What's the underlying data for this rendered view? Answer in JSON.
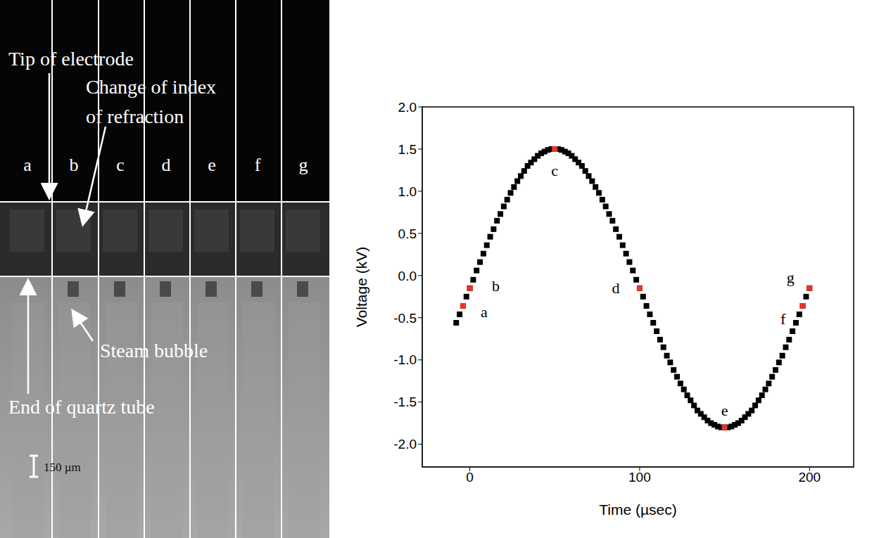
{
  "chart_data": {
    "type": "scatter",
    "xlabel": "Time (µsec)",
    "ylabel": "Voltage (kV)",
    "x": [
      -8,
      -6,
      -4,
      -2,
      0,
      2,
      4,
      6,
      8,
      10,
      12,
      14,
      16,
      18,
      20,
      22,
      24,
      26,
      28,
      30,
      32,
      34,
      36,
      38,
      40,
      42,
      44,
      46,
      48,
      50,
      52,
      54,
      56,
      58,
      60,
      62,
      64,
      66,
      68,
      70,
      72,
      74,
      76,
      78,
      80,
      82,
      84,
      86,
      88,
      90,
      92,
      94,
      96,
      98,
      100,
      102,
      104,
      106,
      108,
      110,
      112,
      114,
      116,
      118,
      120,
      122,
      124,
      126,
      128,
      130,
      132,
      134,
      136,
      138,
      140,
      142,
      144,
      146,
      148,
      150,
      152,
      154,
      156,
      158,
      160,
      162,
      164,
      166,
      168,
      170,
      172,
      174,
      176,
      178,
      180,
      182,
      184,
      186,
      188,
      190,
      192,
      194,
      196,
      198,
      200
    ],
    "values": [
      -0.56,
      -0.46,
      -0.36,
      -0.25,
      -0.15,
      -0.05,
      0.06,
      0.16,
      0.26,
      0.36,
      0.46,
      0.55,
      0.65,
      0.73,
      0.82,
      0.9,
      0.98,
      1.05,
      1.12,
      1.18,
      1.24,
      1.3,
      1.34,
      1.38,
      1.42,
      1.45,
      1.47,
      1.49,
      1.5,
      1.5,
      1.5,
      1.49,
      1.47,
      1.45,
      1.42,
      1.38,
      1.34,
      1.3,
      1.24,
      1.18,
      1.12,
      1.05,
      0.98,
      0.9,
      0.82,
      0.73,
      0.65,
      0.55,
      0.46,
      0.36,
      0.26,
      0.16,
      0.06,
      -0.05,
      -0.15,
      -0.25,
      -0.36,
      -0.46,
      -0.56,
      -0.66,
      -0.76,
      -0.85,
      -0.95,
      -1.03,
      -1.12,
      -1.2,
      -1.28,
      -1.35,
      -1.42,
      -1.48,
      -1.54,
      -1.6,
      -1.64,
      -1.68,
      -1.72,
      -1.75,
      -1.77,
      -1.79,
      -1.8,
      -1.8,
      -1.8,
      -1.79,
      -1.77,
      -1.75,
      -1.72,
      -1.68,
      -1.64,
      -1.6,
      -1.54,
      -1.48,
      -1.42,
      -1.35,
      -1.28,
      -1.2,
      -1.12,
      -1.03,
      -0.95,
      -0.85,
      -0.76,
      -0.66,
      -0.56,
      -0.46,
      -0.36,
      -0.25,
      -0.15
    ],
    "color": "#000000",
    "marker": "square",
    "xlim": [
      -28,
      226
    ],
    "xticks": [
      0,
      100,
      200
    ],
    "ylim": [
      -2.27,
      2.0
    ],
    "yticks": [
      {
        "value": -2,
        "label": "-2.0"
      },
      -1.5,
      {
        "value": -1,
        "label": "-1.0"
      },
      -0.5,
      {
        "value": 0,
        "label": "0.0"
      },
      0.5,
      {
        "value": 1,
        "label": "1.0"
      },
      1.5,
      {
        "value": 2,
        "label": "2.0"
      }
    ],
    "grid": false,
    "annotations": [
      {
        "text": "a",
        "x": -4,
        "y": -0.36,
        "color": "#e8332a"
      },
      {
        "text": "b",
        "x": 0,
        "y": -0.15,
        "color": "#e8332a"
      },
      {
        "text": "c",
        "x": 50,
        "y": 1.5,
        "color": "#e8332a"
      },
      {
        "text": "d",
        "x": 100,
        "y": -0.15,
        "color": "#e8332a"
      },
      {
        "text": "e",
        "x": 150,
        "y": -1.8,
        "color": "#e8332a"
      },
      {
        "text": "f",
        "x": 196,
        "y": -0.36,
        "color": "#e8332a"
      },
      {
        "text": "g",
        "x": 200,
        "y": -0.15,
        "color": "#e8332a"
      }
    ]
  },
  "image_panel": {
    "frames": [
      "a",
      "b",
      "c",
      "d",
      "e",
      "f",
      "g"
    ],
    "annotations": [
      "Tip of electrode",
      "Change of index of refraction",
      "Steam bubble",
      "End of quartz tube"
    ],
    "scale_bar": "150 µm"
  }
}
